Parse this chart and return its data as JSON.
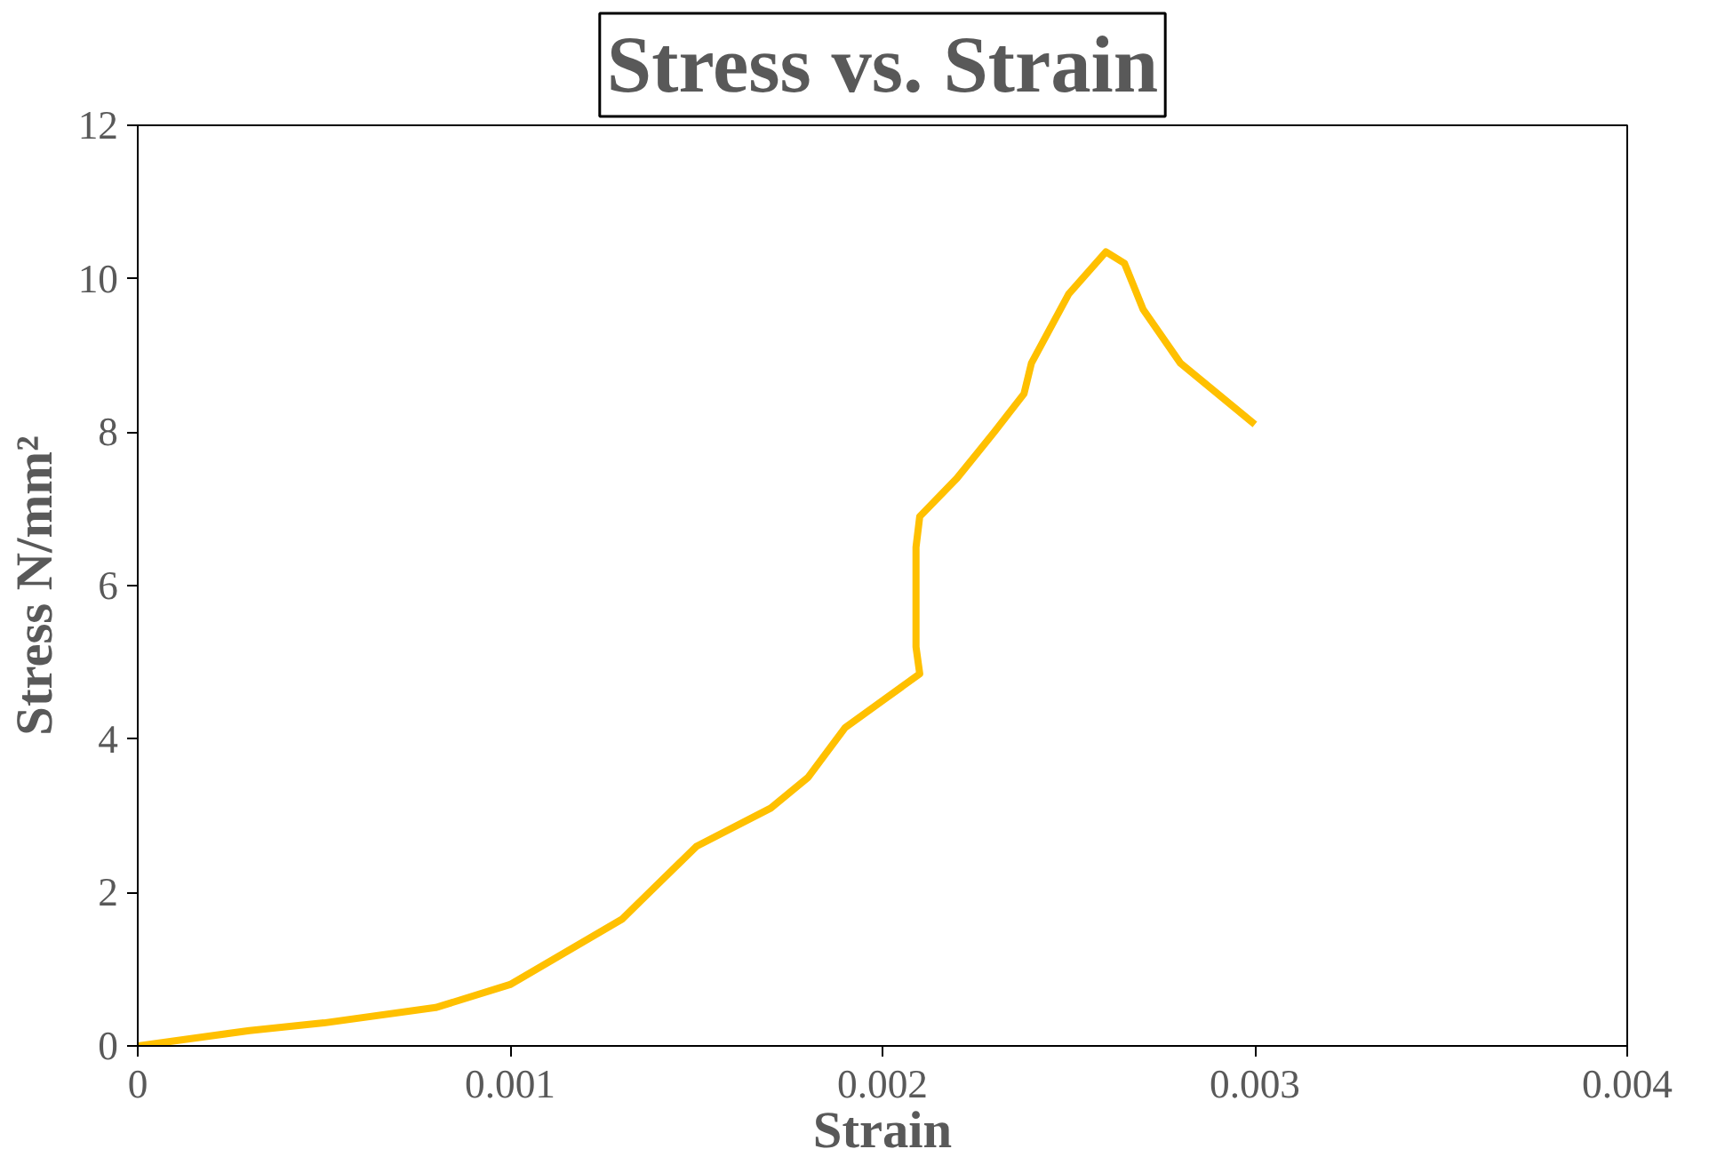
{
  "chart_data": {
    "type": "line",
    "title": "Stress vs. Strain",
    "xlabel": "Strain",
    "ylabel": "Stress N/mm²",
    "x": [
      0,
      0.0003,
      0.0005,
      0.0008,
      0.001,
      0.0013,
      0.0015,
      0.0017,
      0.0018,
      0.0019,
      0.002,
      0.0021,
      0.00209,
      0.00209,
      0.0021,
      0.0022,
      0.0023,
      0.00238,
      0.0024,
      0.0025,
      0.0026,
      0.00265,
      0.0027,
      0.0028,
      0.003
    ],
    "series": [
      {
        "color": "#ffc000",
        "values": [
          0,
          0.2,
          0.3,
          0.5,
          0.8,
          1.65,
          2.6,
          3.1,
          3.5,
          4.15,
          4.5,
          4.85,
          5.2,
          6.5,
          6.9,
          7.4,
          8.0,
          8.5,
          8.9,
          9.8,
          10.35,
          10.2,
          9.6,
          8.9,
          8.1
        ]
      }
    ],
    "xlim": [
      0,
      0.004
    ],
    "ylim": [
      0,
      12
    ],
    "xticks": [
      0,
      0.001,
      0.002,
      0.003,
      0.004
    ],
    "yticks": [
      0,
      2,
      4,
      6,
      8,
      10,
      12
    ],
    "marker": "none",
    "line_style": "solid"
  }
}
